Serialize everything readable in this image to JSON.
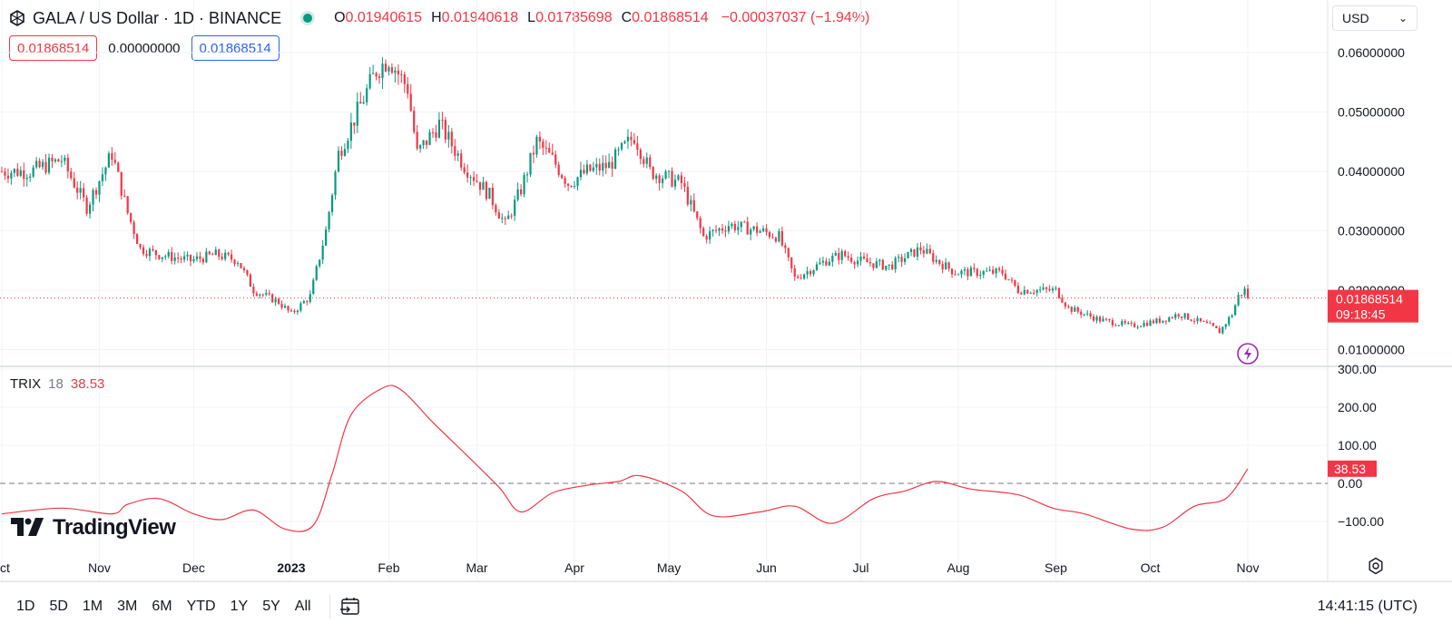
{
  "header": {
    "title": "GALA / US Dollar · 1D · BINANCE",
    "ohlc": {
      "o_label": "O",
      "o_value": "0.01940615",
      "h_label": "H",
      "h_value": "0.01940618",
      "l_label": "L",
      "l_value": "0.01785698",
      "c_label": "C",
      "c_value": "0.01868514",
      "change": "−0.00037037 (−1.94%)"
    },
    "sell_price": "0.01868514",
    "spread": "0.00000000",
    "buy_price": "0.01868514",
    "currency": "USD"
  },
  "price_axis": {
    "ticks": [
      "0.06000000",
      "0.05000000",
      "0.04000000",
      "0.03000000",
      "0.02000000",
      "0.01000000"
    ],
    "last_price": "0.01868514",
    "countdown": "09:18:45"
  },
  "trix": {
    "name": "TRIX",
    "period": "18",
    "value": "38.53",
    "ticks": [
      "300.00",
      "200.00",
      "100.00",
      "0.00",
      "−100.00"
    ]
  },
  "time_axis": [
    "ct",
    "Nov",
    "Dec",
    "2023",
    "Feb",
    "Mar",
    "Apr",
    "May",
    "Jun",
    "Jul",
    "Aug",
    "Sep",
    "Oct",
    "Nov"
  ],
  "bottom_bar": {
    "ranges": [
      "1D",
      "5D",
      "1M",
      "3M",
      "6M",
      "YTD",
      "1Y",
      "5Y",
      "All"
    ],
    "clock": "14:41:15 (UTC)"
  },
  "branding": {
    "logo_text": "TradingView"
  },
  "colors": {
    "up": "#089981",
    "down": "#f23645",
    "trix_line": "#f23645",
    "accent": "#2962ff"
  },
  "chart_data": [
    {
      "type": "candlestick",
      "title": "GALA / US Dollar · 1D · BINANCE",
      "x": [
        "2022-10",
        "2022-11",
        "2022-12",
        "2023-01",
        "2023-02",
        "2023-03",
        "2023-04",
        "2023-05",
        "2023-06",
        "2023-07",
        "2023-08",
        "2023-09",
        "2023-10",
        "2023-11"
      ],
      "ylim": [
        0.006,
        0.064
      ],
      "anchors": [
        [
          "2022-10-10",
          0.04
        ],
        [
          "2022-10-20",
          0.042
        ],
        [
          "2022-10-28",
          0.034
        ],
        [
          "2022-11-05",
          0.043
        ],
        [
          "2022-11-10",
          0.033
        ],
        [
          "2022-11-14",
          0.027
        ],
        [
          "2022-11-20",
          0.026
        ],
        [
          "2022-11-30",
          0.025
        ],
        [
          "2022-12-08",
          0.026
        ],
        [
          "2022-12-15",
          0.025
        ],
        [
          "2022-12-20",
          0.02
        ],
        [
          "2022-12-28",
          0.018
        ],
        [
          "2023-01-01",
          0.016
        ],
        [
          "2023-01-07",
          0.019
        ],
        [
          "2023-01-12",
          0.03
        ],
        [
          "2023-01-16",
          0.043
        ],
        [
          "2023-01-22",
          0.05
        ],
        [
          "2023-01-28",
          0.057
        ],
        [
          "2023-02-01",
          0.059
        ],
        [
          "2023-02-07",
          0.054
        ],
        [
          "2023-02-10",
          0.043
        ],
        [
          "2023-02-17",
          0.048
        ],
        [
          "2023-02-25",
          0.041
        ],
        [
          "2023-03-05",
          0.036
        ],
        [
          "2023-03-10",
          0.031
        ],
        [
          "2023-03-15",
          0.037
        ],
        [
          "2023-03-20",
          0.045
        ],
        [
          "2023-03-25",
          0.042
        ],
        [
          "2023-03-30",
          0.038
        ],
        [
          "2023-04-05",
          0.04
        ],
        [
          "2023-04-12",
          0.041
        ],
        [
          "2023-04-20",
          0.046
        ],
        [
          "2023-04-25",
          0.04
        ],
        [
          "2023-05-05",
          0.038
        ],
        [
          "2023-05-12",
          0.029
        ],
        [
          "2023-05-20",
          0.031
        ],
        [
          "2023-05-30",
          0.03
        ],
        [
          "2023-06-05",
          0.029
        ],
        [
          "2023-06-10",
          0.022
        ],
        [
          "2023-06-20",
          0.025
        ],
        [
          "2023-06-25",
          0.026
        ],
        [
          "2023-06-30",
          0.025
        ],
        [
          "2023-07-10",
          0.024
        ],
        [
          "2023-07-20",
          0.027
        ],
        [
          "2023-07-25",
          0.025
        ],
        [
          "2023-07-31",
          0.023
        ],
        [
          "2023-08-05",
          0.023
        ],
        [
          "2023-08-15",
          0.023
        ],
        [
          "2023-08-20",
          0.02
        ],
        [
          "2023-09-01",
          0.02
        ],
        [
          "2023-09-05",
          0.017
        ],
        [
          "2023-09-15",
          0.015
        ],
        [
          "2023-09-25",
          0.014
        ],
        [
          "2023-10-05",
          0.015
        ],
        [
          "2023-10-10",
          0.016
        ],
        [
          "2023-10-20",
          0.014
        ],
        [
          "2023-10-23",
          0.013
        ],
        [
          "2023-10-27",
          0.016
        ],
        [
          "2023-10-29",
          0.019
        ],
        [
          "2023-10-31",
          0.02
        ],
        [
          "2023-11-01",
          0.0187
        ]
      ]
    },
    {
      "type": "line",
      "title": "TRIX 18",
      "ylim": [
        -145,
        300
      ],
      "series": [
        {
          "name": "TRIX",
          "points": [
            [
              "2022-10-01",
              -80
            ],
            [
              "2022-10-20",
              -65
            ],
            [
              "2022-11-05",
              -80
            ],
            [
              "2022-11-10",
              -55
            ],
            [
              "2022-11-20",
              -40
            ],
            [
              "2022-12-01",
              -80
            ],
            [
              "2022-12-10",
              -95
            ],
            [
              "2022-12-20",
              -70
            ],
            [
              "2022-12-30",
              -120
            ],
            [
              "2023-01-08",
              -110
            ],
            [
              "2023-01-14",
              25
            ],
            [
              "2023-01-20",
              180
            ],
            [
              "2023-01-30",
              250
            ],
            [
              "2023-02-05",
              245
            ],
            [
              "2023-02-15",
              160
            ],
            [
              "2023-02-25",
              80
            ],
            [
              "2023-03-08",
              -10
            ],
            [
              "2023-03-15",
              -75
            ],
            [
              "2023-03-25",
              -25
            ],
            [
              "2023-04-05",
              -5
            ],
            [
              "2023-04-15",
              5
            ],
            [
              "2023-04-22",
              20
            ],
            [
              "2023-05-05",
              -20
            ],
            [
              "2023-05-15",
              -85
            ],
            [
              "2023-05-30",
              -75
            ],
            [
              "2023-06-10",
              -60
            ],
            [
              "2023-06-22",
              -105
            ],
            [
              "2023-07-05",
              -40
            ],
            [
              "2023-07-15",
              -20
            ],
            [
              "2023-07-25",
              5
            ],
            [
              "2023-08-05",
              -15
            ],
            [
              "2023-08-20",
              -30
            ],
            [
              "2023-08-31",
              -65
            ],
            [
              "2023-09-10",
              -80
            ],
            [
              "2023-09-25",
              -120
            ],
            [
              "2023-10-05",
              -115
            ],
            [
              "2023-10-15",
              -60
            ],
            [
              "2023-10-25",
              -40
            ],
            [
              "2023-11-01",
              38.53
            ]
          ]
        }
      ]
    }
  ]
}
